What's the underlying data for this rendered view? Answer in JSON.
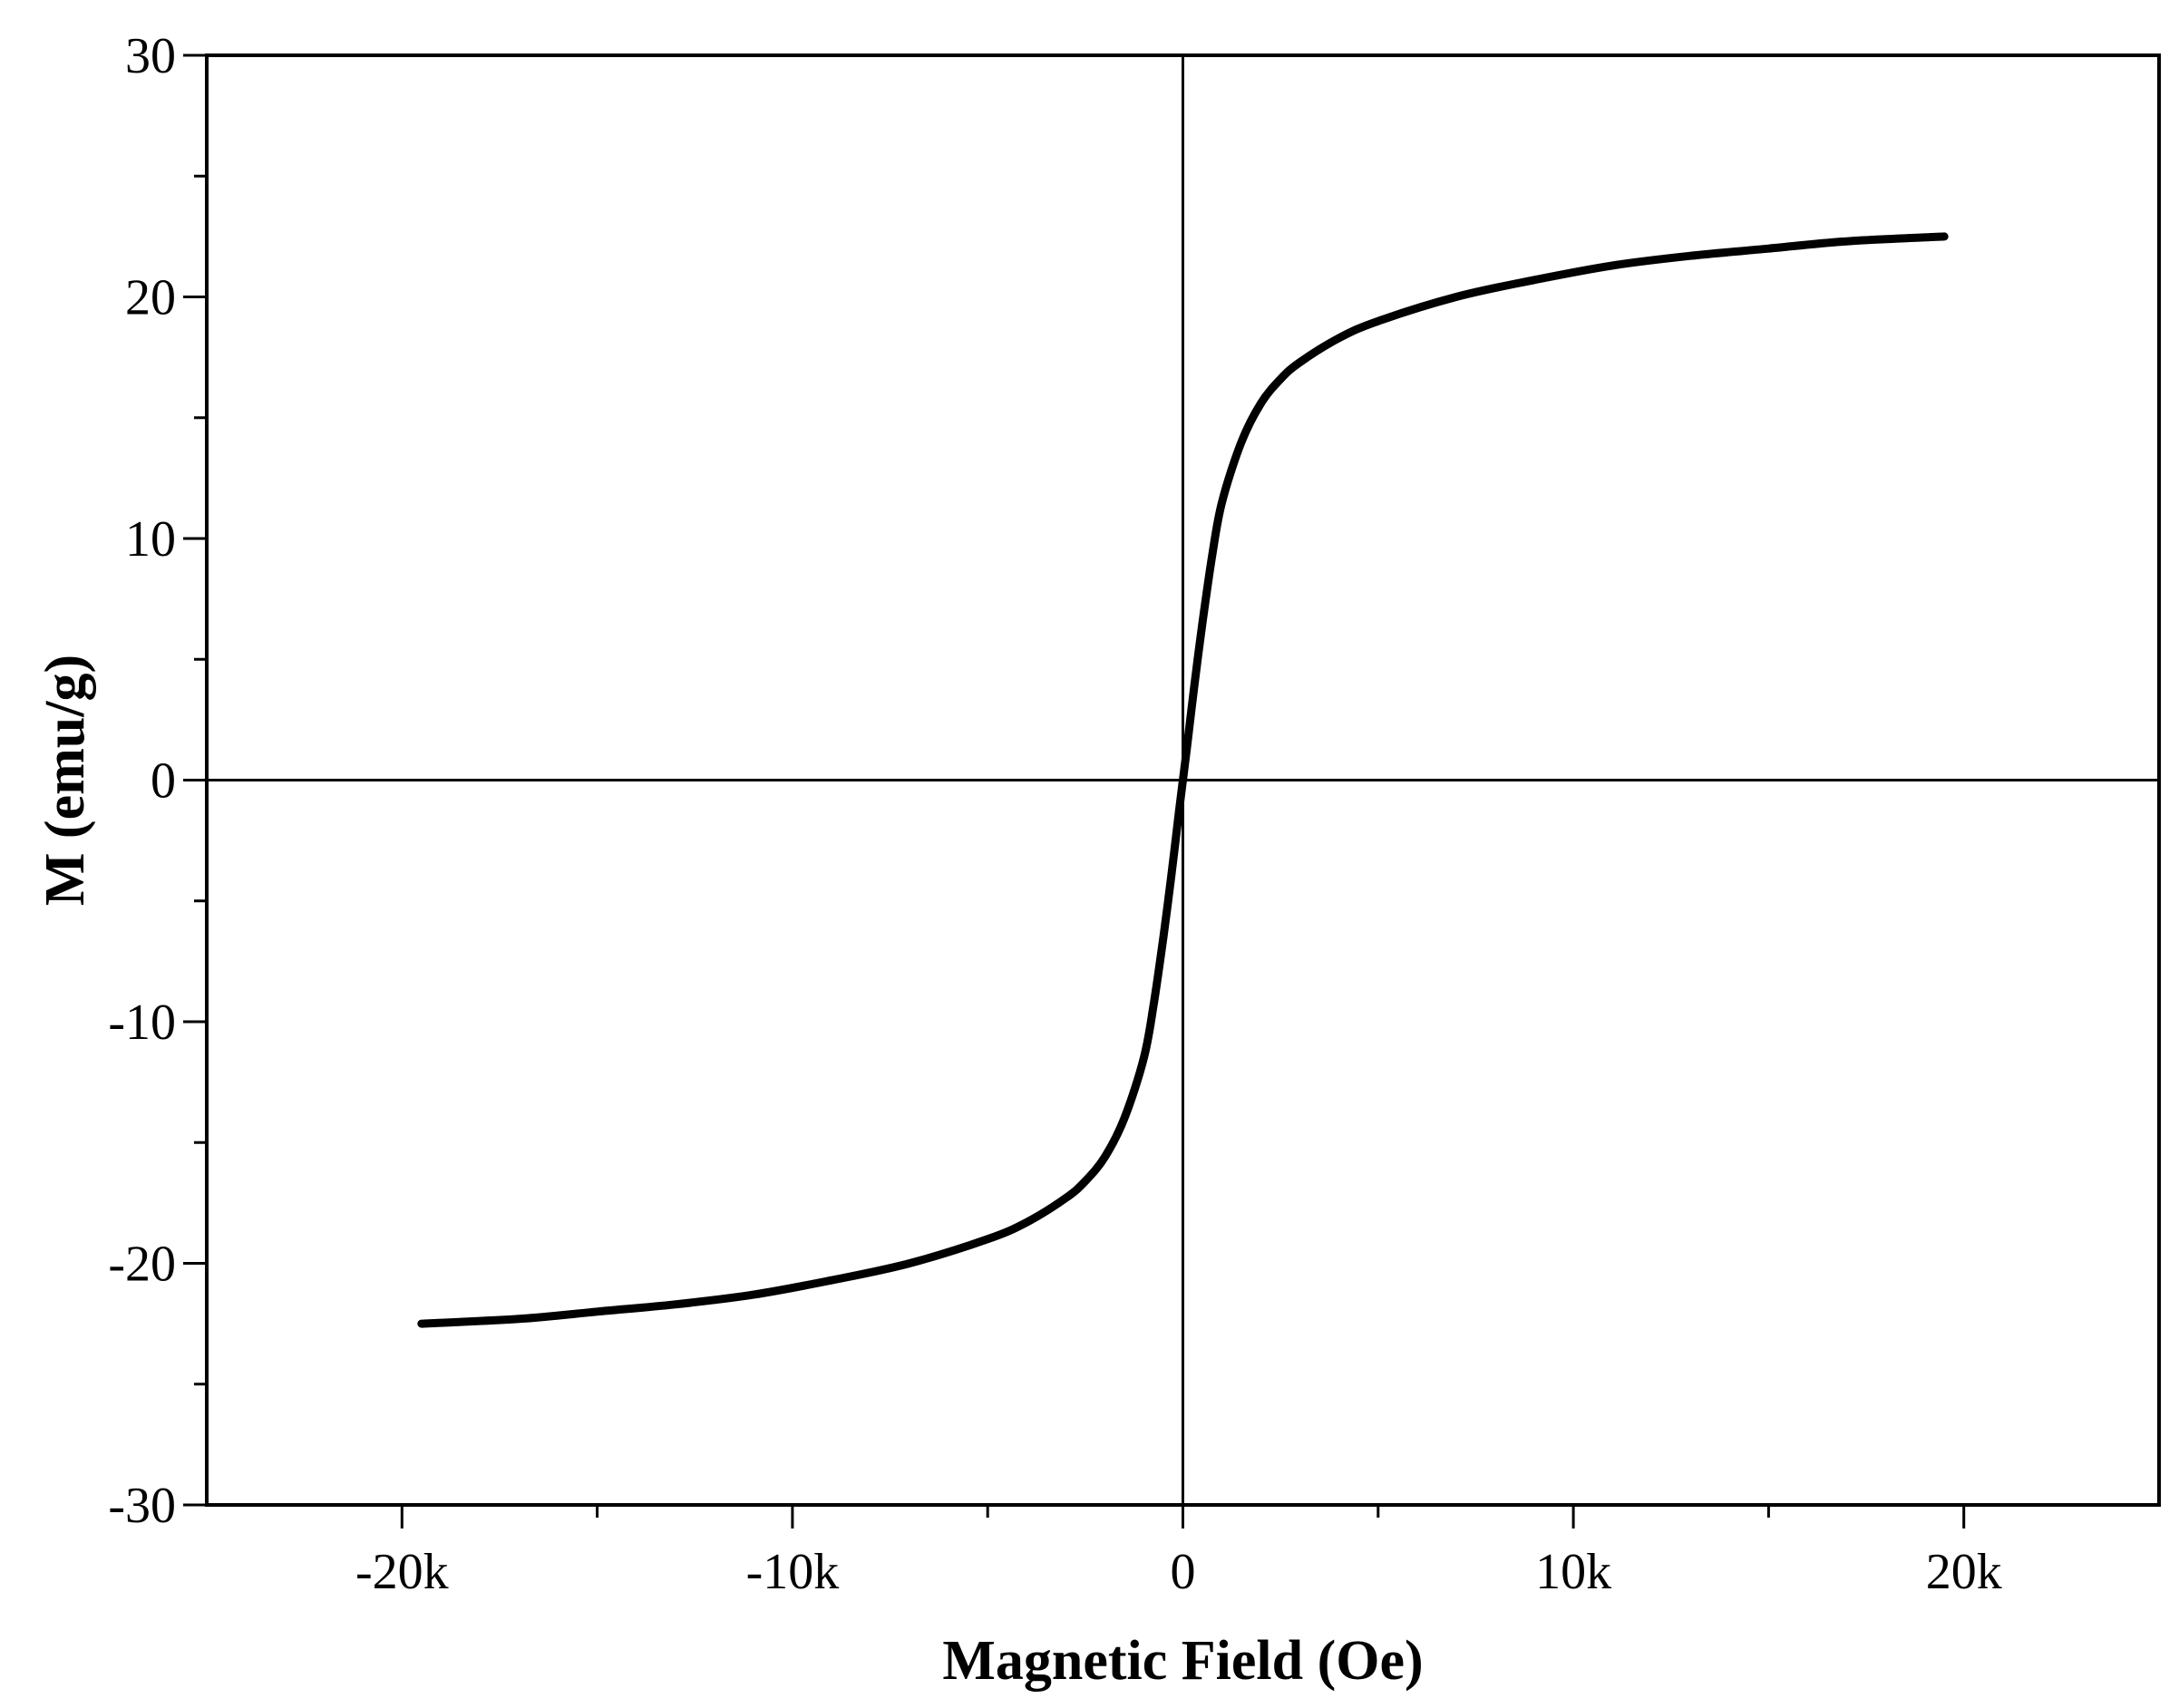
{
  "chart_data": {
    "type": "line",
    "title": "",
    "xlabel": "Magnetic Field (Oe)",
    "ylabel": "M (emu/g)",
    "xlim": [
      -25000,
      25000
    ],
    "ylim": [
      -30,
      30
    ],
    "x_ticks": [
      {
        "value": -20000,
        "label": "-20k"
      },
      {
        "value": -10000,
        "label": "-10k"
      },
      {
        "value": 0,
        "label": "0"
      },
      {
        "value": 10000,
        "label": "10k"
      },
      {
        "value": 20000,
        "label": "20k"
      }
    ],
    "x_minor_ticks": [
      -15000,
      -5000,
      5000,
      15000
    ],
    "y_ticks": [
      {
        "value": 30,
        "label": "30"
      },
      {
        "value": 20,
        "label": "20"
      },
      {
        "value": 10,
        "label": "10"
      },
      {
        "value": 0,
        "label": "0"
      },
      {
        "value": -10,
        "label": "-10"
      },
      {
        "value": -20,
        "label": "-20"
      },
      {
        "value": -30,
        "label": "-30"
      }
    ],
    "y_minor_ticks": [
      25,
      15,
      5,
      -5,
      -15,
      -25
    ],
    "zero_lines": true,
    "grid": false,
    "legend": "none",
    "series": [
      {
        "color": "#000000",
        "x": [
          -19500,
          -17000,
          -15000,
          -13000,
          -11000,
          -9000,
          -7000,
          -5000,
          -4000,
          -3000,
          -2500,
          -2000,
          -1500,
          -1000,
          -750,
          -500,
          -300,
          -100,
          0,
          100,
          300,
          500,
          750,
          1000,
          1500,
          2000,
          2500,
          3000,
          4000,
          5000,
          7000,
          9000,
          11000,
          13000,
          15000,
          17000,
          19500
        ],
        "y": [
          -22.5,
          -22.3,
          -22.0,
          -21.7,
          -21.3,
          -20.7,
          -20.0,
          -19.0,
          -18.3,
          -17.3,
          -16.6,
          -15.6,
          -14.0,
          -11.5,
          -9.3,
          -6.5,
          -4.0,
          -1.3,
          0,
          1.3,
          4.0,
          6.5,
          9.3,
          11.5,
          14.0,
          15.6,
          16.6,
          17.3,
          18.3,
          19.0,
          20.0,
          20.7,
          21.3,
          21.7,
          22.0,
          22.3,
          22.5
        ]
      }
    ]
  }
}
